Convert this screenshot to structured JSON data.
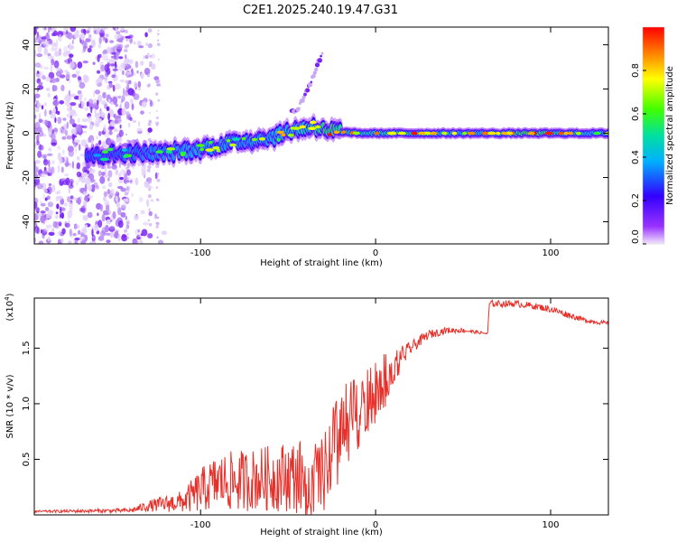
{
  "figure_title": "C2E1.2025.240.19.47.G31",
  "colors": {
    "snr_line": "#e8302a",
    "frame": "#000000",
    "background": "#ffffff"
  },
  "chart_data": [
    {
      "type": "heatmap",
      "title": "",
      "xlabel": "Height of straight line (km)",
      "ylabel": "Frequency (Hz)",
      "xlim": [
        -195,
        133
      ],
      "ylim": [
        -50,
        48
      ],
      "x_ticks": [
        -100,
        0,
        100
      ],
      "x_tick_labels": [
        "-100",
        "0",
        "100"
      ],
      "y_ticks": [
        -40,
        -20,
        0,
        20,
        40
      ],
      "y_tick_labels": [
        "-40",
        "-20",
        "0",
        "20",
        "40"
      ],
      "colorbar": {
        "label": "Normalized spectral amplitude",
        "range": [
          0,
          1
        ],
        "ticks": [
          0.0,
          0.2,
          0.4,
          0.6,
          0.8
        ],
        "tick_labels": [
          "0.0",
          "0.2",
          "0.4",
          "0.6",
          "0.8"
        ],
        "colormap": "rainbow (violet to red)"
      },
      "ridge": {
        "x": [
          -160,
          -140,
          -120,
          -100,
          -80,
          -60,
          -45,
          -35,
          -25,
          -10,
          0,
          20,
          50,
          90,
          110,
          133
        ],
        "frequency": [
          -10,
          -9,
          -9,
          -7,
          -4,
          -2,
          2,
          3,
          1,
          0,
          0,
          0,
          0,
          0,
          0,
          0
        ],
        "amplitude": [
          0.45,
          0.5,
          0.55,
          0.6,
          0.55,
          0.6,
          0.7,
          0.8,
          0.85,
          0.7,
          0.75,
          0.8,
          0.65,
          0.9,
          0.7,
          0.6
        ]
      },
      "branch": {
        "x": [
          -45,
          -40,
          -35,
          -30
        ],
        "frequency": [
          10,
          18,
          27,
          37
        ]
      }
    },
    {
      "type": "line",
      "title": "",
      "xlabel": "Height of straight line (km)",
      "ylabel": "SNR (10 * v/v)",
      "y_multiplier": "(x10",
      "y_multiplier_exp": "4",
      "y_multiplier_close": ")",
      "xlim": [
        -195,
        133
      ],
      "ylim": [
        0,
        1.95
      ],
      "x_ticks": [
        -100,
        0,
        100
      ],
      "x_tick_labels": [
        "-100",
        "0",
        "100"
      ],
      "y_ticks": [
        0.5,
        1.0,
        1.5
      ],
      "y_tick_labels": [
        "0.5",
        "1.0",
        "1.5"
      ],
      "series": [
        {
          "name": "SNR",
          "x": [
            -195,
            -140,
            -130,
            -110,
            -100,
            -90,
            -80,
            -70,
            -60,
            -50,
            -40,
            -30,
            -25,
            -20,
            -15,
            -10,
            -5,
            0,
            5,
            10,
            20,
            30,
            40,
            50,
            64,
            65,
            70,
            80,
            90,
            100,
            110,
            120,
            133
          ],
          "y": [
            0.03,
            0.04,
            0.08,
            0.12,
            0.22,
            0.3,
            0.3,
            0.32,
            0.33,
            0.35,
            0.34,
            0.33,
            0.6,
            0.65,
            0.9,
            0.9,
            1.0,
            1.08,
            1.2,
            1.33,
            1.5,
            1.62,
            1.66,
            1.66,
            1.63,
            1.9,
            1.9,
            1.9,
            1.88,
            1.85,
            1.8,
            1.75,
            1.72
          ],
          "noise_amplitude": [
            0.01,
            0.02,
            0.05,
            0.1,
            0.2,
            0.25,
            0.28,
            0.28,
            0.3,
            0.32,
            0.35,
            0.35,
            0.4,
            0.45,
            0.35,
            0.3,
            0.3,
            0.3,
            0.25,
            0.15,
            0.06,
            0.04,
            0.03,
            0.02,
            0.01,
            0.03,
            0.03,
            0.03,
            0.03,
            0.03,
            0.03,
            0.02,
            0.02
          ]
        }
      ]
    }
  ]
}
